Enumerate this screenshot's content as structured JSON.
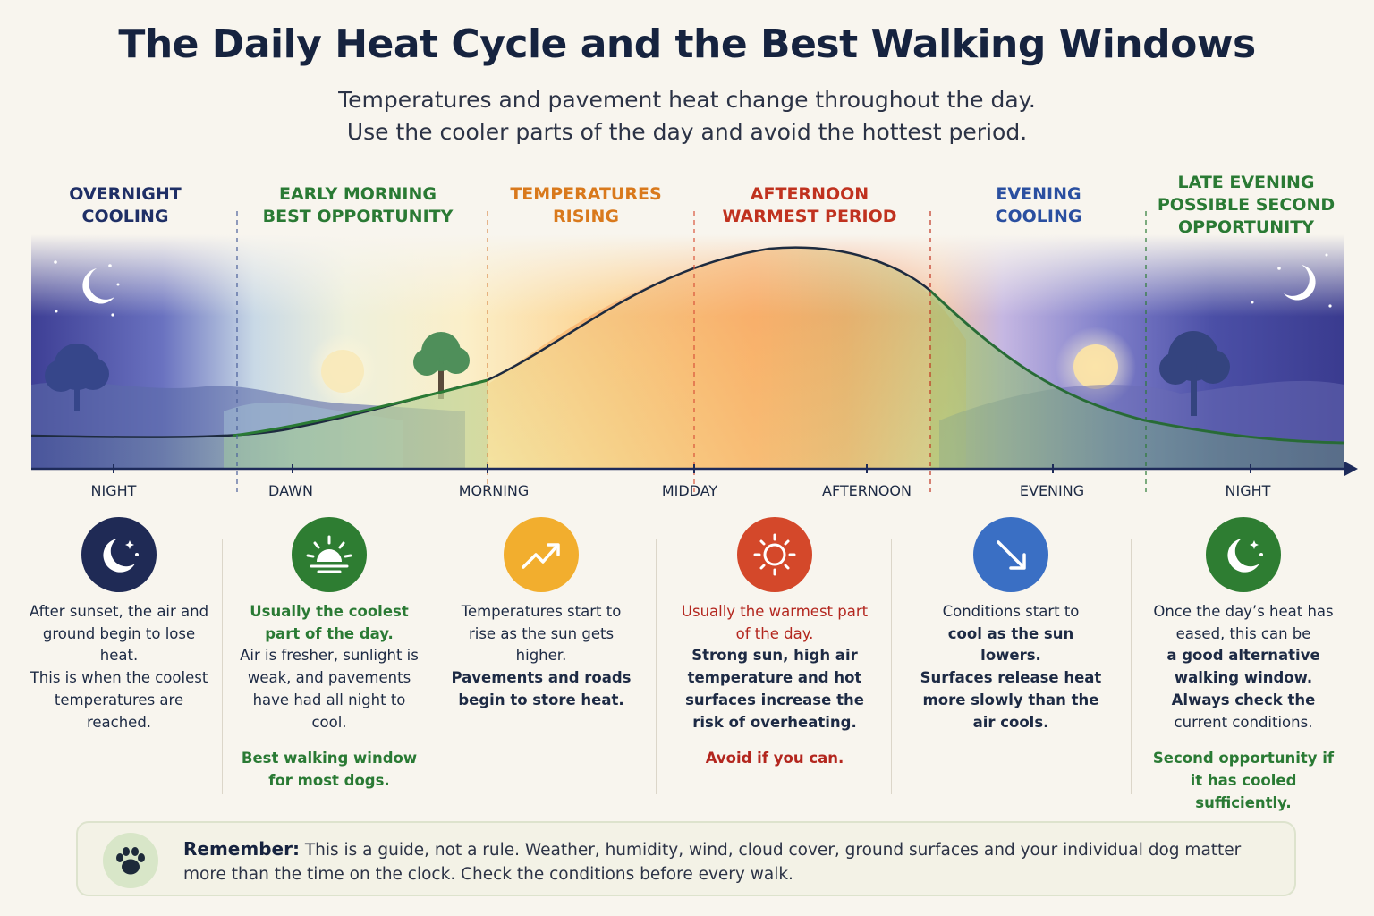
{
  "title": "The Daily Heat Cycle and the Best Walking Windows",
  "subtitle": [
    "Temperatures and pavement heat change throughout the day.",
    "Use the cooler parts of the day and avoid the hottest period."
  ],
  "phases": [
    {
      "line1": "OVERNIGHT",
      "line2": "COOLING",
      "color": "#1f2f66"
    },
    {
      "line1": "EARLY MORNING",
      "line2": "BEST OPPORTUNITY",
      "color": "#2a7a34"
    },
    {
      "line1": "TEMPERATURES",
      "line2": "RISING",
      "color": "#d9791c"
    },
    {
      "line1": "AFTERNOON",
      "line2": "WARMEST PERIOD",
      "color": "#c0321f"
    },
    {
      "line1": "EVENING",
      "line2": "COOLING",
      "color": "#2a4fa0"
    },
    {
      "line1": "LATE EVENING",
      "line2": "POSSIBLE SECOND",
      "line3": "OPPORTUNITY",
      "color": "#2a7a34"
    }
  ],
  "time_labels": [
    "NIGHT",
    "DAWN",
    "MORNING",
    "MIDDAY",
    "AFTERNOON",
    "EVENING",
    "NIGHT"
  ],
  "columns": [
    {
      "icon": "moon-stars-icon",
      "icon_color": "#1f2a55",
      "p1": "After sunset, the air and ground begin to lose heat.",
      "p2": "This is when the coolest temperatures are reached."
    },
    {
      "icon": "sunrise-icon",
      "icon_color": "#2e7d32",
      "p1": "Usually the coolest part of the day.",
      "p2": "Air is fresher, sunlight is weak, and pavements have had all night to cool.",
      "p3": "Best walking window for most dogs."
    },
    {
      "icon": "trend-up-icon",
      "icon_color": "#f2ae2e",
      "p1": "Temperatures start to rise as the sun gets higher.",
      "p2": "Pavements and roads begin to store heat."
    },
    {
      "icon": "sun-icon",
      "icon_color": "#d4482a",
      "p1": "Usually the warmest part of the day.",
      "p2": "Strong sun, high air temperature and hot surfaces increase the risk of overheating.",
      "p3": "Avoid if you can."
    },
    {
      "icon": "trend-down-icon",
      "icon_color": "#3a6fc4",
      "p1a": "Conditions start to",
      "p1b": "cool as the sun lowers.",
      "p2": "Surfaces release heat more slowly than the air cools."
    },
    {
      "icon": "moon-stars-icon",
      "icon_color": "#2e7d32",
      "p1a": "Once the day’s heat has eased, this can be",
      "p1b": "a good alternative walking window.",
      "p1c": "Always check the",
      "p1d": "current conditions.",
      "p3": "Second opportunity if it has cooled sufficiently."
    }
  ],
  "remember": {
    "lead": "Remember:",
    "text": "This is a guide, not a rule. Weather, humidity, wind, cloud cover, ground surfaces and your individual dog matter more than the time on the clock. Check the conditions before every walk.",
    "icon": "paw-icon"
  },
  "colors": {
    "night": "#3a3f8f",
    "dawn": "#bcd6b2",
    "warm": "#f7a04a",
    "hot": "#f06b3c",
    "curve": "#1e2b3f",
    "green_fill": "#7fb85a"
  }
}
